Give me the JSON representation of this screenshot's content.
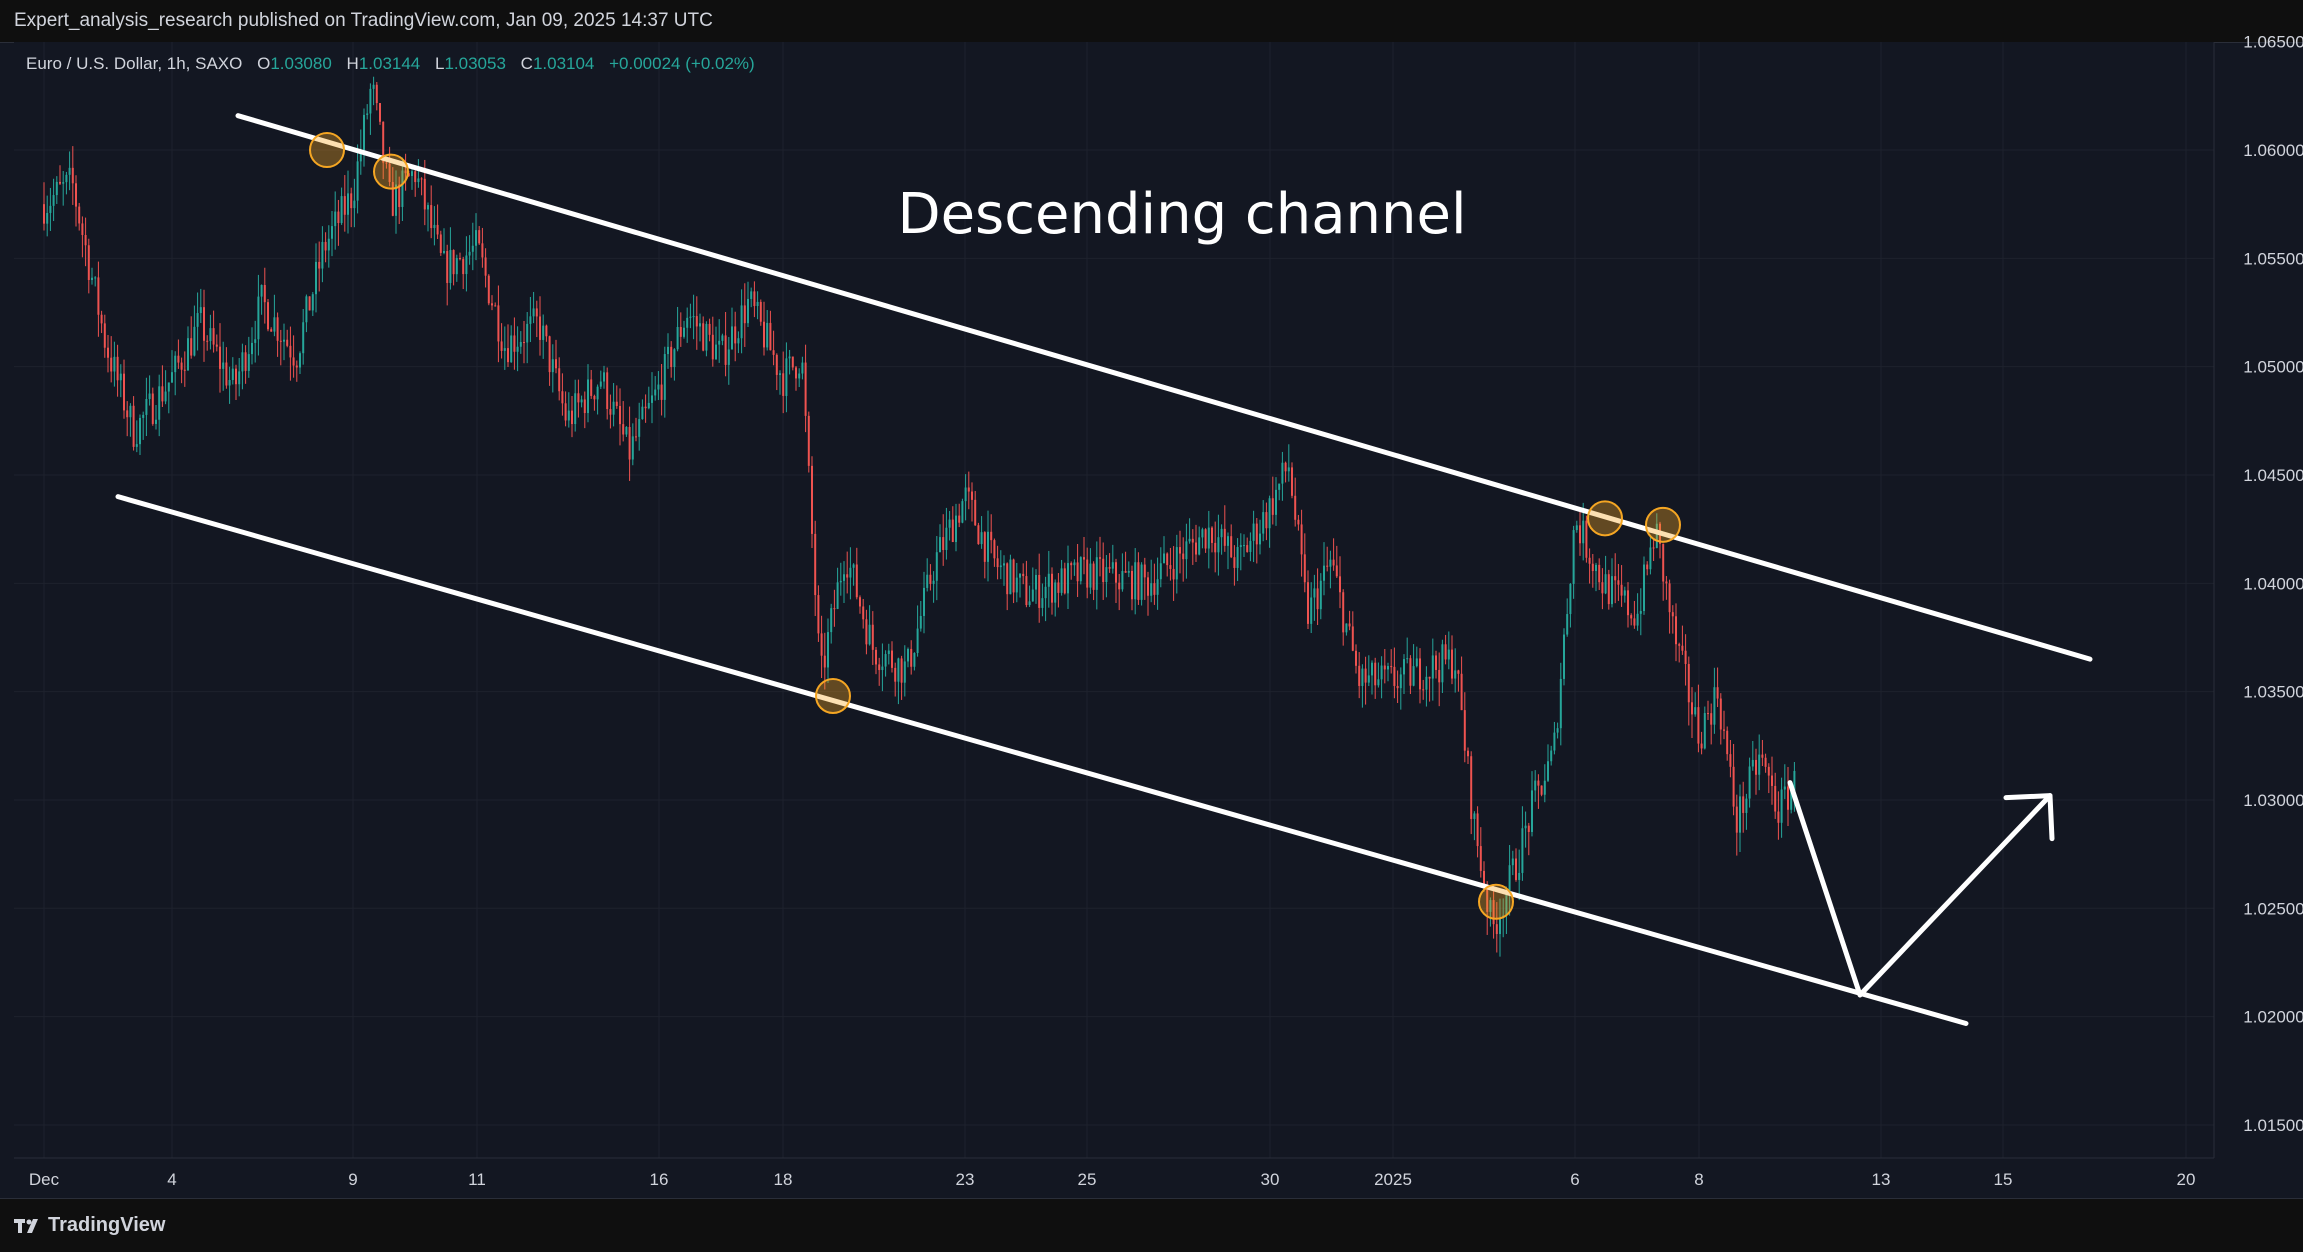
{
  "header": {
    "published_by": "Expert_analysis_research published on TradingView.com, Jan 09, 2025 14:37 UTC"
  },
  "legend": {
    "symbol": "Euro / U.S. Dollar, 1h, SAXO",
    "o_label": "O",
    "o_value": "1.03080",
    "h_label": "H",
    "h_value": "1.03144",
    "l_label": "L",
    "l_value": "1.03053",
    "c_label": "C",
    "c_value": "1.03104",
    "change": "+0.00024 (+0.02%)"
  },
  "footer": {
    "brand": "TradingView"
  },
  "colors": {
    "background": "#131722",
    "up": "#26a69a",
    "down": "#ef5350",
    "drawing": "#ffffff",
    "touch_marker": "#f5a623",
    "grid": "#1e222d"
  },
  "chart_data": {
    "type": "candlestick",
    "annotation": "Descending channel",
    "y_axis": {
      "ylim": [
        1.0135,
        1.0652
      ],
      "ticks": [
        "1.06500",
        "1.06000",
        "1.05500",
        "1.05000",
        "1.04500",
        "1.04000",
        "1.03500",
        "1.03000",
        "1.02500",
        "1.02000",
        "1.01500"
      ]
    },
    "x_axis": {
      "ticks": [
        "Dec",
        "4",
        "9",
        "11",
        "16",
        "18",
        "23",
        "25",
        "30",
        "2025",
        "6",
        "8",
        "13",
        "15",
        "20"
      ]
    },
    "price_path": [
      [
        "Dec 2",
        1.0575
      ],
      [
        "Dec 2",
        1.0585
      ],
      [
        "Dec 3",
        1.051
      ],
      [
        "Dec 3",
        1.047
      ],
      [
        "Dec 4",
        1.0495
      ],
      [
        "Dec 4",
        1.052
      ],
      [
        "Dec 5",
        1.049
      ],
      [
        "Dec 5",
        1.053
      ],
      [
        "Dec 6",
        1.0505
      ],
      [
        "Dec 6",
        1.0555
      ],
      [
        "Dec 9",
        1.058
      ],
      [
        "Dec 9",
        1.063
      ],
      [
        "Dec 9",
        1.0575
      ],
      [
        "Dec 10",
        1.059
      ],
      [
        "Dec 10",
        1.0545
      ],
      [
        "Dec 11",
        1.0555
      ],
      [
        "Dec 11",
        1.051
      ],
      [
        "Dec 12",
        1.052
      ],
      [
        "Dec 12",
        1.0475
      ],
      [
        "Dec 13",
        1.0495
      ],
      [
        "Dec 13",
        1.046
      ],
      [
        "Dec 16",
        1.049
      ],
      [
        "Dec 16",
        1.0525
      ],
      [
        "Dec 17",
        1.0505
      ],
      [
        "Dec 17",
        1.053
      ],
      [
        "Dec 18",
        1.0495
      ],
      [
        "Dec 18",
        1.0505
      ],
      [
        "Dec 18",
        1.0355
      ],
      [
        "Dec 19",
        1.0415
      ],
      [
        "Dec 19",
        1.037
      ],
      [
        "Dec 20",
        1.036
      ],
      [
        "Dec 20",
        1.041
      ],
      [
        "Dec 23",
        1.044
      ],
      [
        "Dec 23",
        1.041
      ],
      [
        "Dec 24",
        1.0395
      ],
      [
        "Dec 25",
        1.0405
      ],
      [
        "Dec 26",
        1.04
      ],
      [
        "Dec 27",
        1.0425
      ],
      [
        "Dec 27",
        1.041
      ],
      [
        "Dec 30",
        1.0435
      ],
      [
        "Dec 30",
        1.0455
      ],
      [
        "Dec 30",
        1.0385
      ],
      [
        "Dec 31",
        1.041
      ],
      [
        "Dec 31",
        1.0355
      ],
      [
        "Jan 1",
        1.0355
      ],
      [
        "Jan 2",
        1.0365
      ],
      [
        "Jan 2",
        1.029
      ],
      [
        "Jan 2",
        1.024
      ],
      [
        "Jan 3",
        1.027
      ],
      [
        "Jan 3",
        1.03
      ],
      [
        "Jan 3",
        1.032
      ],
      [
        "Jan 6",
        1.043
      ],
      [
        "Jan 6",
        1.04
      ],
      [
        "Jan 7",
        1.0385
      ],
      [
        "Jan 7",
        1.0425
      ],
      [
        "Jan 7",
        1.0375
      ],
      [
        "Jan 8",
        1.033
      ],
      [
        "Jan 8",
        1.035
      ],
      [
        "Jan 8",
        1.029
      ],
      [
        "Jan 9",
        1.032
      ],
      [
        "Jan 9",
        1.0295
      ],
      [
        "Jan 9",
        1.031
      ]
    ],
    "drawings": {
      "upper_channel": [
        [
          "Dec 6",
          1.0608
        ],
        [
          "Jan 17",
          1.0365
        ]
      ],
      "lower_channel": [
        [
          "Dec 3",
          1.044
        ],
        [
          "Jan 14",
          1.0195
        ]
      ],
      "projection": [
        [
          "Jan 9",
          1.0308
        ],
        [
          "Jan 12",
          1.021
        ],
        [
          "Jan 16",
          1.0302
        ]
      ],
      "touch_points": [
        [
          "Dec 9",
          1.06
        ],
        [
          "Dec 10",
          1.059
        ],
        [
          "Dec 19",
          1.0348
        ],
        [
          "Jan 3",
          1.0253
        ],
        [
          "Jan 6",
          1.043
        ],
        [
          "Jan 7",
          1.0427
        ]
      ]
    }
  }
}
